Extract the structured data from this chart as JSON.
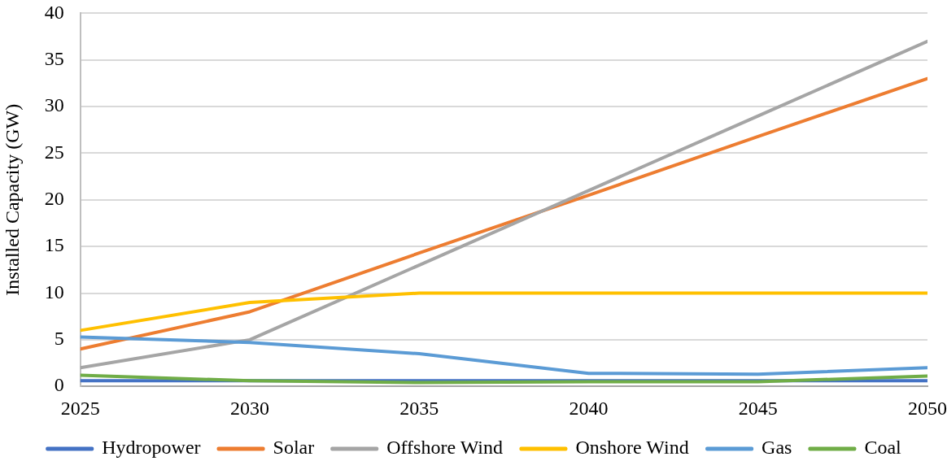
{
  "chart_data": {
    "type": "line",
    "ylabel": "Installed Capacity (GW)",
    "x": [
      2025,
      2030,
      2035,
      2040,
      2045,
      2050
    ],
    "xlim": [
      2025,
      2050
    ],
    "xticks": [
      2025,
      2030,
      2035,
      2040,
      2045,
      2050
    ],
    "ylim": [
      0,
      40
    ],
    "yticks": [
      0,
      5,
      10,
      15,
      20,
      25,
      30,
      35,
      40
    ],
    "grid": "y",
    "legend": "bottom",
    "marker": "none",
    "line_style": "solid",
    "series": [
      {
        "name": "Hydropower",
        "color": "#4472c4",
        "values": [
          0.6,
          0.6,
          0.6,
          0.6,
          0.6,
          0.6
        ]
      },
      {
        "name": "Solar",
        "color": "#ed7d31",
        "values": [
          4,
          8,
          14.3,
          20.5,
          26.8,
          33
        ]
      },
      {
        "name": "Offshore Wind",
        "color": "#a5a5a5",
        "values": [
          2,
          5,
          13,
          21,
          29,
          37
        ]
      },
      {
        "name": "Onshore Wind",
        "color": "#ffc000",
        "values": [
          6,
          9,
          10,
          10,
          10,
          10
        ]
      },
      {
        "name": "Gas",
        "color": "#5b9bd5",
        "values": [
          5.3,
          4.7,
          3.5,
          1.4,
          1.3,
          2
        ]
      },
      {
        "name": "Coal",
        "color": "#70ad47",
        "values": [
          1.2,
          0.6,
          0.4,
          0.5,
          0.5,
          1.1
        ]
      }
    ]
  }
}
